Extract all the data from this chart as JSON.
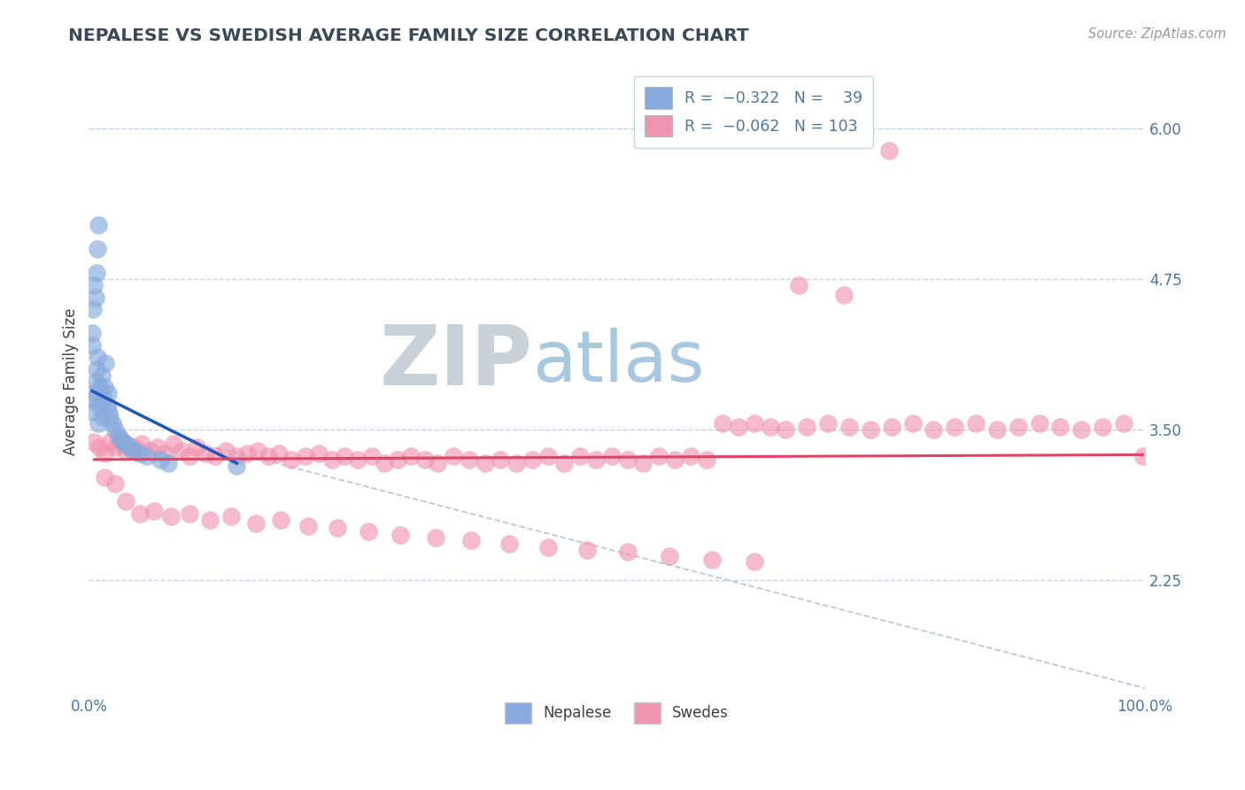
{
  "title": "NEPALESE VS SWEDISH AVERAGE FAMILY SIZE CORRELATION CHART",
  "source": "Source: ZipAtlas.com",
  "ylabel": "Average Family Size",
  "xlim": [
    0.0,
    1.0
  ],
  "ylim": [
    1.3,
    6.5
  ],
  "yticks_right": [
    2.25,
    3.5,
    4.75,
    6.0
  ],
  "xtick_labels": [
    "0.0%",
    "100.0%"
  ],
  "blue_color": "#88aadd",
  "pink_color": "#f095b0",
  "blue_line_color": "#2255bb",
  "pink_line_color": "#dd4466",
  "diag_color": "#aabbcc",
  "grid_color": "#c5d5e5",
  "title_color": "#3a4858",
  "axis_color": "#4a75a8",
  "background_color": "#ffffff",
  "watermark_zip": "ZIP",
  "watermark_atlas": "atlas",
  "watermark_color_zip": "#c8d0d8",
  "watermark_color_atlas": "#a8c8e0",
  "nepalese_x": [
    0.003,
    0.004,
    0.005,
    0.006,
    0.007,
    0.008,
    0.009,
    0.01,
    0.011,
    0.012,
    0.013,
    0.014,
    0.015,
    0.016,
    0.017,
    0.018,
    0.019,
    0.02,
    0.022,
    0.025,
    0.028,
    0.03,
    0.032,
    0.035,
    0.038,
    0.042,
    0.048,
    0.055,
    0.068,
    0.075,
    0.003,
    0.004,
    0.005,
    0.006,
    0.007,
    0.008,
    0.009,
    0.14,
    0.003
  ],
  "nepalese_y": [
    3.65,
    3.75,
    3.8,
    3.9,
    4.0,
    4.1,
    3.55,
    3.7,
    3.85,
    3.95,
    3.6,
    3.75,
    3.85,
    4.05,
    3.7,
    3.8,
    3.65,
    3.6,
    3.55,
    3.5,
    3.45,
    3.42,
    3.4,
    3.38,
    3.35,
    3.32,
    3.3,
    3.28,
    3.25,
    3.22,
    4.3,
    4.5,
    4.7,
    4.6,
    4.8,
    5.0,
    5.2,
    3.2,
    4.2
  ],
  "swedes_x": [
    0.005,
    0.01,
    0.015,
    0.02,
    0.025,
    0.03,
    0.035,
    0.04,
    0.045,
    0.05,
    0.058,
    0.065,
    0.072,
    0.08,
    0.088,
    0.095,
    0.102,
    0.11,
    0.12,
    0.13,
    0.14,
    0.15,
    0.16,
    0.17,
    0.18,
    0.192,
    0.205,
    0.218,
    0.23,
    0.242,
    0.255,
    0.268,
    0.28,
    0.292,
    0.305,
    0.318,
    0.33,
    0.345,
    0.36,
    0.375,
    0.39,
    0.405,
    0.42,
    0.435,
    0.45,
    0.465,
    0.48,
    0.495,
    0.51,
    0.525,
    0.54,
    0.555,
    0.57,
    0.585,
    0.6,
    0.615,
    0.63,
    0.645,
    0.66,
    0.68,
    0.7,
    0.72,
    0.74,
    0.76,
    0.78,
    0.8,
    0.82,
    0.84,
    0.86,
    0.88,
    0.9,
    0.92,
    0.94,
    0.96,
    0.98,
    0.998,
    0.015,
    0.025,
    0.035,
    0.048,
    0.062,
    0.078,
    0.095,
    0.115,
    0.135,
    0.158,
    0.182,
    0.208,
    0.235,
    0.265,
    0.295,
    0.328,
    0.362,
    0.398,
    0.435,
    0.472,
    0.51,
    0.55,
    0.59,
    0.63,
    0.672,
    0.715,
    0.758
  ],
  "swedes_y": [
    3.4,
    3.35,
    3.3,
    3.4,
    3.35,
    3.38,
    3.32,
    3.36,
    3.34,
    3.38,
    3.32,
    3.35,
    3.3,
    3.38,
    3.32,
    3.28,
    3.35,
    3.3,
    3.28,
    3.32,
    3.28,
    3.3,
    3.32,
    3.28,
    3.3,
    3.25,
    3.28,
    3.3,
    3.25,
    3.28,
    3.25,
    3.28,
    3.22,
    3.25,
    3.28,
    3.25,
    3.22,
    3.28,
    3.25,
    3.22,
    3.25,
    3.22,
    3.25,
    3.28,
    3.22,
    3.28,
    3.25,
    3.28,
    3.25,
    3.22,
    3.28,
    3.25,
    3.28,
    3.25,
    3.55,
    3.52,
    3.55,
    3.52,
    3.5,
    3.52,
    3.55,
    3.52,
    3.5,
    3.52,
    3.55,
    3.5,
    3.52,
    3.55,
    3.5,
    3.52,
    3.55,
    3.52,
    3.5,
    3.52,
    3.55,
    3.28,
    3.1,
    3.05,
    2.9,
    2.8,
    2.82,
    2.78,
    2.8,
    2.75,
    2.78,
    2.72,
    2.75,
    2.7,
    2.68,
    2.65,
    2.62,
    2.6,
    2.58,
    2.55,
    2.52,
    2.5,
    2.48,
    2.45,
    2.42,
    2.4,
    4.7,
    4.62,
    5.82
  ],
  "blue_trend_x": [
    0.003,
    0.14
  ],
  "blue_trend_y": [
    3.82,
    3.22
  ],
  "pink_trend_x": [
    0.005,
    0.998
  ],
  "pink_trend_y": [
    3.25,
    3.29
  ],
  "diag_line_x": [
    0.12,
    1.0
  ],
  "diag_line_y": [
    3.35,
    1.35
  ]
}
